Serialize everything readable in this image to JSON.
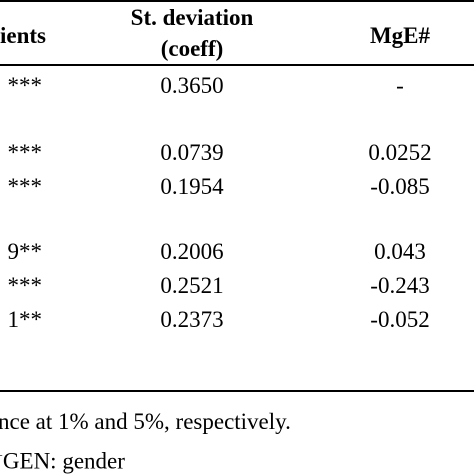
{
  "table": {
    "headers": {
      "coefficients": "ients",
      "st_dev_line1": "St. deviation",
      "st_dev_line2": "(coeff)",
      "mge": "MgE#"
    },
    "rows": [
      {
        "coef": "***",
        "sd": "0.3650",
        "mge": "-"
      },
      {
        "coef": "***",
        "sd": "0.0739",
        "mge": "0.0252"
      },
      {
        "coef": "***",
        "sd": "0.1954",
        "mge": "-0.085"
      },
      {
        "coef": "9**",
        "sd": "0.2006",
        "mge": "0.043"
      },
      {
        "coef": "***",
        "sd": "0.2521",
        "mge": "-0.243"
      },
      {
        "coef": "1**",
        "sd": "0.2373",
        "mge": "-0.052"
      }
    ]
  },
  "notes": {
    "line1": "nce at 1% and 5%, respectively.",
    "line2_sup": "+",
    "line2": "GEN: gender"
  }
}
